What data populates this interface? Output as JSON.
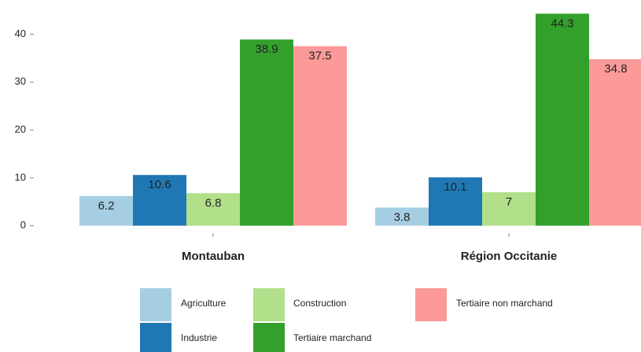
{
  "chart_data": {
    "type": "bar",
    "categories": [
      "Montauban",
      "Région Occitanie"
    ],
    "series": [
      {
        "name": "Agriculture",
        "color": "#a6cee3",
        "values": [
          6.2,
          3.8
        ]
      },
      {
        "name": "Industrie",
        "color": "#1f78b4",
        "values": [
          10.6,
          10.1
        ]
      },
      {
        "name": "Construction",
        "color": "#b2df8a",
        "values": [
          6.8,
          7
        ]
      },
      {
        "name": "Tertiaire marchand",
        "color": "#33a02c",
        "values": [
          38.9,
          44.3
        ]
      },
      {
        "name": "Tertiaire non marchand",
        "color": "#fb9a99",
        "values": [
          37.5,
          34.8
        ]
      }
    ],
    "ylim": [
      -2.2,
      46.5
    ],
    "yticks": [
      0,
      10,
      20,
      30,
      40
    ],
    "grid": false
  }
}
